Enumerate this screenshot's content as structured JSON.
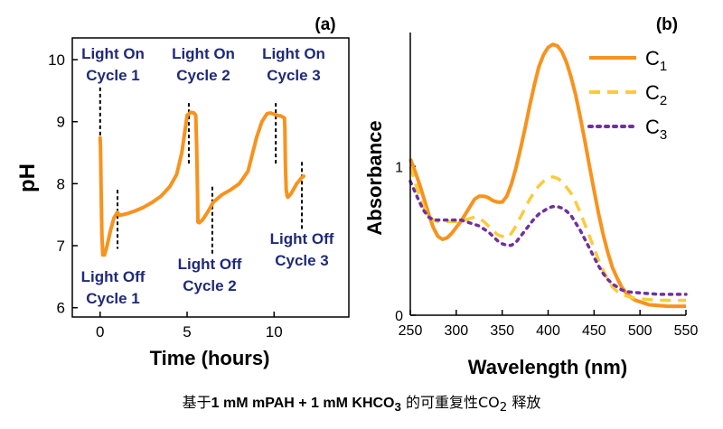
{
  "caption": {
    "pre": "基于",
    "bold_a": "1 mM mPAH + 1 mM KHCO",
    "bold_a_sub": "3",
    "mid": " 的可重复性CO",
    "mid_sub": "2",
    "post": " 释放"
  },
  "chart_data": [
    {
      "type": "line",
      "panel_label": "(a)",
      "xlabel": "Time (hours)",
      "ylabel": "pH",
      "xlim": [
        -1.6,
        14.3
      ],
      "ylim": [
        5.85,
        10.35
      ],
      "x_ticks": [
        0,
        5,
        10
      ],
      "y_ticks": [
        6,
        7,
        8,
        9,
        10
      ],
      "grid": false,
      "color": "#F7931E",
      "series": [
        {
          "x": [
            0.0,
            0.02,
            0.05,
            0.1,
            0.15,
            0.25,
            0.4,
            0.6,
            0.8,
            0.95,
            1.0,
            1.1,
            1.3,
            1.6,
            2.0,
            2.5,
            3.0,
            3.5,
            4.0,
            4.4,
            4.7,
            4.9,
            5.0,
            5.2,
            5.4,
            5.5,
            5.55,
            5.6,
            5.62,
            5.7,
            5.9,
            6.2,
            6.5,
            7.0,
            7.5,
            8.0,
            8.5,
            9.0,
            9.3,
            9.6,
            9.8,
            10.0,
            10.2,
            10.4,
            10.6,
            10.62,
            10.65,
            10.7,
            10.75,
            10.8,
            11.0,
            11.3,
            11.6,
            11.7
          ],
          "y": [
            8.74,
            8.6,
            8.0,
            7.2,
            6.85,
            6.85,
            7.0,
            7.25,
            7.45,
            7.52,
            7.54,
            7.49,
            7.5,
            7.52,
            7.56,
            7.62,
            7.7,
            7.8,
            7.95,
            8.15,
            8.5,
            8.9,
            9.1,
            9.15,
            9.14,
            9.1,
            8.6,
            7.8,
            7.38,
            7.37,
            7.42,
            7.55,
            7.7,
            7.82,
            7.9,
            8.0,
            8.2,
            8.75,
            9.0,
            9.13,
            9.14,
            9.12,
            9.1,
            9.09,
            9.06,
            8.9,
            8.3,
            7.9,
            7.8,
            7.78,
            7.85,
            8.0,
            8.1,
            8.12
          ]
        }
      ],
      "annotations": [
        {
          "text": [
            "Light On",
            "Cycle 1"
          ],
          "marker_x": 0.0,
          "marker_y": [
            8.55,
            9.55
          ]
        },
        {
          "text": [
            "Light On",
            "Cycle 2"
          ],
          "marker_x": 5.1,
          "marker_y": [
            8.3,
            9.3
          ]
        },
        {
          "text": [
            "Light On",
            "Cycle 3"
          ],
          "marker_x": 10.1,
          "marker_y": [
            8.3,
            9.3
          ]
        },
        {
          "text": [
            "Light Off",
            "Cycle 1"
          ],
          "marker_x": 1.0,
          "marker_y": [
            6.95,
            7.9
          ]
        },
        {
          "text": [
            "Light Off",
            "Cycle 2"
          ],
          "marker_x": 6.45,
          "marker_y": [
            6.85,
            7.95
          ]
        },
        {
          "text": [
            "Light Off",
            "Cycle 3"
          ],
          "marker_x": 11.6,
          "marker_y": [
            7.25,
            8.35
          ]
        }
      ]
    },
    {
      "type": "line",
      "panel_label": "(b)",
      "xlabel": "Wavelength (nm)",
      "ylabel": "Absorbance",
      "xlim": [
        250,
        550
      ],
      "ylim": [
        0,
        1.9
      ],
      "x_ticks": [
        250,
        300,
        350,
        400,
        450,
        500,
        550
      ],
      "y_ticks": [
        0,
        1
      ],
      "grid": false,
      "legend_position": "top-right",
      "series": [
        {
          "name": "C",
          "name_sub": "1",
          "color": "#F7931E",
          "style": "solid",
          "x": [
            250,
            255,
            260,
            265,
            270,
            275,
            280,
            285,
            290,
            295,
            300,
            305,
            310,
            315,
            320,
            325,
            330,
            335,
            340,
            345,
            350,
            355,
            360,
            365,
            370,
            375,
            380,
            385,
            390,
            395,
            400,
            405,
            410,
            415,
            420,
            425,
            430,
            435,
            440,
            445,
            450,
            455,
            460,
            465,
            470,
            475,
            480,
            485,
            490,
            495,
            500,
            505,
            510,
            520,
            530,
            540,
            550
          ],
          "y": [
            1.05,
            0.97,
            0.88,
            0.78,
            0.68,
            0.59,
            0.53,
            0.51,
            0.52,
            0.55,
            0.59,
            0.63,
            0.68,
            0.73,
            0.78,
            0.8,
            0.8,
            0.79,
            0.77,
            0.76,
            0.76,
            0.8,
            0.88,
            0.99,
            1.12,
            1.26,
            1.41,
            1.55,
            1.67,
            1.75,
            1.8,
            1.82,
            1.81,
            1.77,
            1.7,
            1.6,
            1.48,
            1.33,
            1.17,
            1.0,
            0.84,
            0.68,
            0.54,
            0.42,
            0.32,
            0.25,
            0.19,
            0.15,
            0.12,
            0.1,
            0.09,
            0.08,
            0.07,
            0.065,
            0.06,
            0.06,
            0.06
          ]
        },
        {
          "name": "C",
          "name_sub": "2",
          "color": "#FBCB3B",
          "style": "dashed",
          "x": [
            250,
            255,
            260,
            265,
            270,
            275,
            280,
            285,
            290,
            295,
            300,
            305,
            310,
            315,
            320,
            325,
            330,
            335,
            340,
            345,
            350,
            355,
            360,
            365,
            370,
            375,
            380,
            385,
            390,
            395,
            400,
            405,
            410,
            415,
            420,
            425,
            430,
            435,
            440,
            445,
            450,
            455,
            460,
            465,
            470,
            475,
            480,
            485,
            490,
            495,
            500,
            510,
            520,
            530,
            540,
            550
          ],
          "y": [
            1.0,
            0.9,
            0.8,
            0.72,
            0.67,
            0.64,
            0.63,
            0.63,
            0.63,
            0.63,
            0.63,
            0.63,
            0.64,
            0.65,
            0.66,
            0.65,
            0.63,
            0.6,
            0.57,
            0.54,
            0.53,
            0.52,
            0.55,
            0.6,
            0.66,
            0.72,
            0.78,
            0.83,
            0.87,
            0.9,
            0.92,
            0.93,
            0.92,
            0.9,
            0.86,
            0.82,
            0.76,
            0.69,
            0.61,
            0.53,
            0.45,
            0.37,
            0.3,
            0.24,
            0.19,
            0.16,
            0.14,
            0.13,
            0.12,
            0.115,
            0.11,
            0.105,
            0.1,
            0.1,
            0.1,
            0.1
          ]
        },
        {
          "name": "C",
          "name_sub": "3",
          "color": "#7030A0",
          "style": "dotted",
          "x": [
            250,
            255,
            260,
            265,
            270,
            275,
            280,
            285,
            290,
            295,
            300,
            305,
            310,
            315,
            320,
            325,
            330,
            335,
            340,
            345,
            350,
            355,
            360,
            365,
            370,
            375,
            380,
            385,
            390,
            395,
            400,
            405,
            410,
            415,
            420,
            425,
            430,
            435,
            440,
            445,
            450,
            455,
            460,
            465,
            470,
            475,
            480,
            485,
            490,
            500,
            510,
            520,
            530,
            540,
            550
          ],
          "y": [
            0.9,
            0.83,
            0.76,
            0.7,
            0.66,
            0.64,
            0.64,
            0.64,
            0.64,
            0.64,
            0.64,
            0.64,
            0.63,
            0.62,
            0.61,
            0.6,
            0.58,
            0.56,
            0.53,
            0.5,
            0.48,
            0.47,
            0.47,
            0.49,
            0.53,
            0.57,
            0.61,
            0.65,
            0.68,
            0.7,
            0.72,
            0.73,
            0.73,
            0.72,
            0.7,
            0.67,
            0.62,
            0.57,
            0.51,
            0.45,
            0.39,
            0.33,
            0.28,
            0.24,
            0.21,
            0.19,
            0.17,
            0.16,
            0.155,
            0.15,
            0.145,
            0.14,
            0.14,
            0.14,
            0.14
          ]
        }
      ]
    }
  ]
}
